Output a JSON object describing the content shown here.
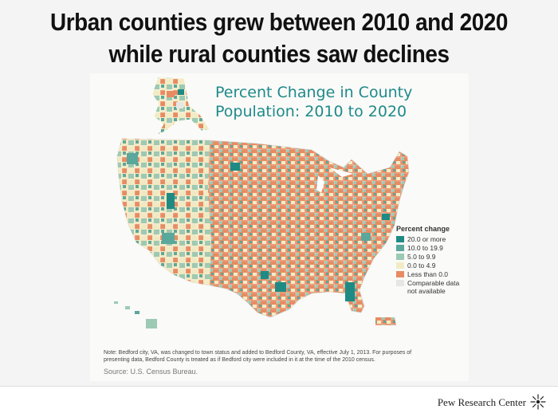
{
  "headline": {
    "line1": "Urban counties grew between 2010 and 2020",
    "line2": "while rural counties saw declines"
  },
  "map": {
    "title_line1": "Percent Change in County",
    "title_line2": "Population: 2010 to 2020",
    "legend": {
      "title": "Percent change",
      "items": [
        {
          "label": "20.0 or more",
          "color": "#1f8a84"
        },
        {
          "label": "10.0 to 19.9",
          "color": "#5aa79c"
        },
        {
          "label": "5.0 to 9.9",
          "color": "#9ccab5"
        },
        {
          "label": "0.0 to 4.9",
          "color": "#f2ecc6"
        },
        {
          "label": "Less than 0.0",
          "color": "#e88b63"
        },
        {
          "label": "Comparable data",
          "label2": "not available",
          "color": "#e6e6e6"
        }
      ]
    },
    "note_line1": "Note: Bedford city, VA, was changed to town status and added to Bedford County, VA, effective July 1, 2013. For purposes of",
    "note_line2": "presenting data, Bedford County is treated as if Bedford city were included in it at the time of the 2010 census.",
    "source": "Source: U.S. Census Bureau."
  },
  "footer": {
    "brand": "Pew Research Center",
    "icon": "sunburst-logo-icon"
  }
}
